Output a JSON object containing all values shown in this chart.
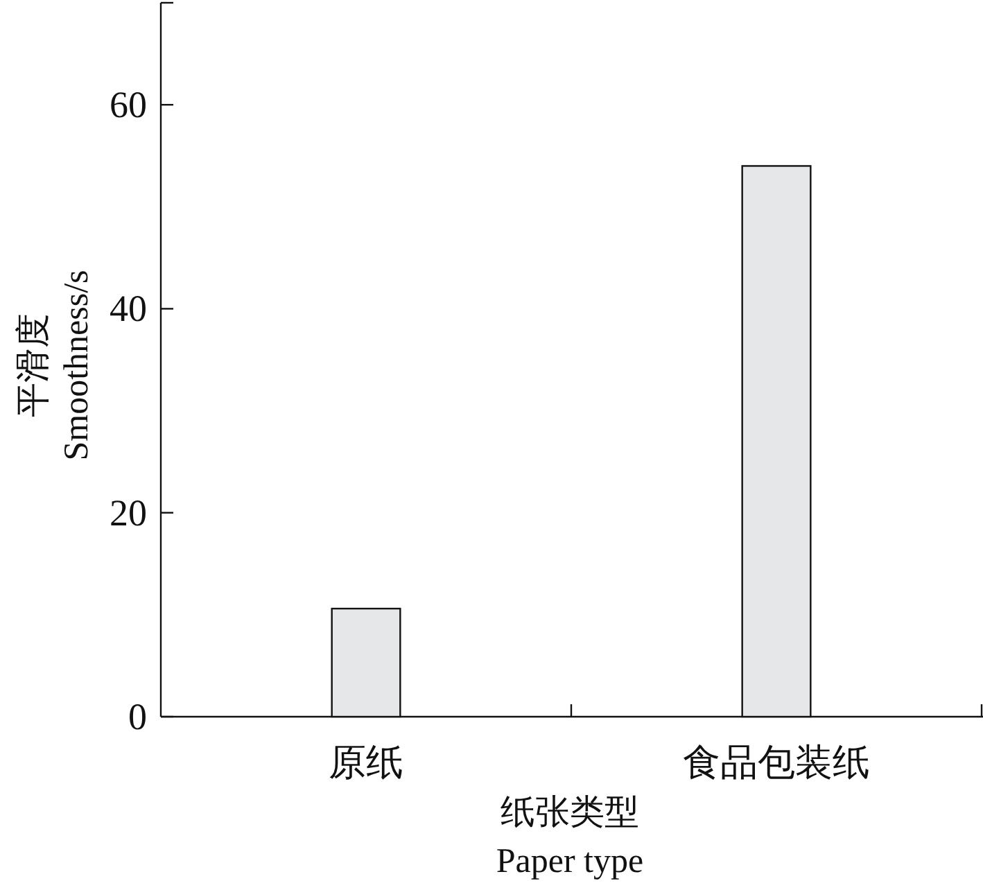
{
  "chart_data": {
    "type": "bar",
    "categories": [
      "原纸",
      "食品包装纸"
    ],
    "values": [
      10.6,
      54
    ],
    "color": "#e6e7e9",
    "xlabel": "纸张类型\nPaper type",
    "ylabel": "平滑度\nSmoothness/s",
    "ylim": [
      0,
      70
    ],
    "yticks": [
      0,
      20,
      40,
      60
    ]
  }
}
